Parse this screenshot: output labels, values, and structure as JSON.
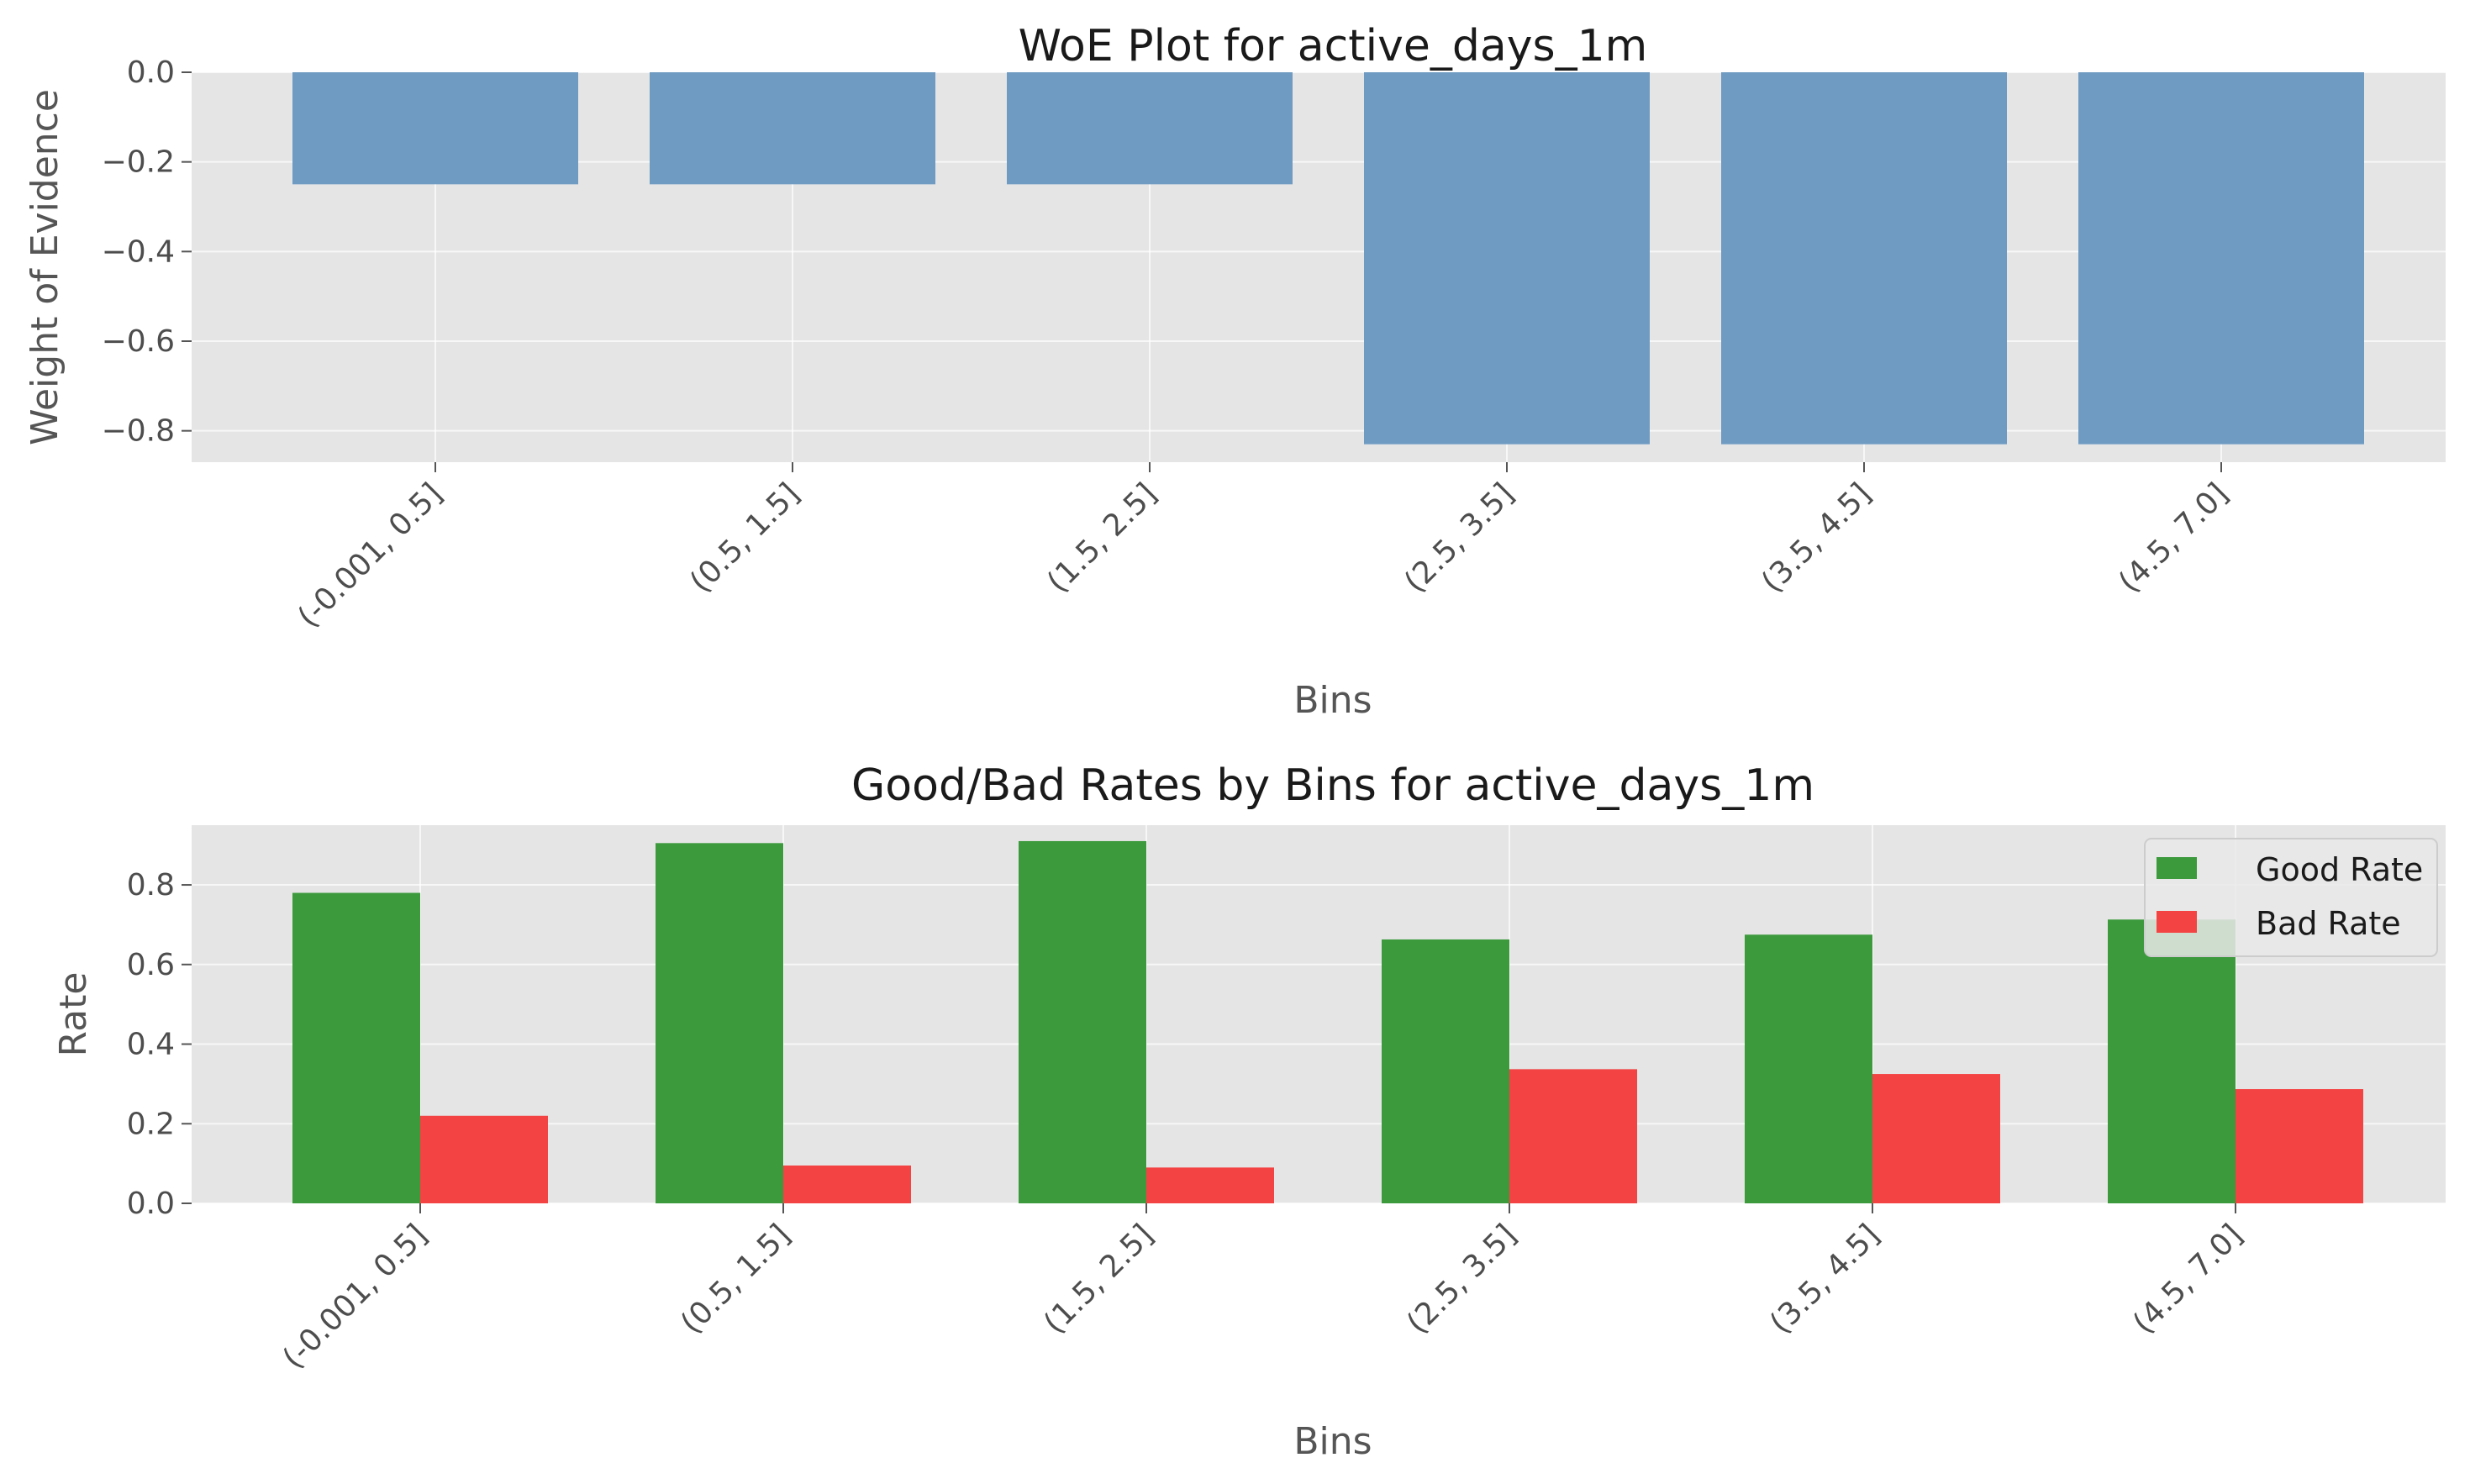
{
  "chart_data": [
    {
      "type": "bar",
      "title": "WoE Plot for active_days_1m",
      "xlabel": "Bins",
      "ylabel": "Weight of Evidence",
      "categories": [
        "(-0.001, 0.5]",
        "(0.5, 1.5]",
        "(1.5, 2.5]",
        "(2.5, 3.5]",
        "(3.5, 4.5]",
        "(4.5, 7.0]"
      ],
      "series": [
        {
          "values": [
            -0.25,
            -0.25,
            -0.25,
            -0.83,
            -0.83,
            -0.83
          ],
          "color": "#6f9bc3"
        }
      ],
      "ylim": [
        -0.87,
        0.0
      ],
      "yticks": [
        0.0,
        -0.2,
        -0.4,
        -0.6,
        -0.8
      ],
      "ytick_labels": [
        "0.0",
        "−0.2",
        "−0.4",
        "−0.6",
        "−0.8"
      ],
      "grid": true,
      "background": "#e5e5e5"
    },
    {
      "type": "bar",
      "title": "Good/Bad Rates by Bins for active_days_1m",
      "xlabel": "Bins",
      "ylabel": "Rate",
      "categories": [
        "(-0.001, 0.5]",
        "(0.5, 1.5]",
        "(1.5, 2.5]",
        "(2.5, 3.5]",
        "(3.5, 4.5]",
        "(4.5, 7.0]"
      ],
      "series": [
        {
          "name": "Good Rate",
          "values": [
            0.78,
            0.905,
            0.91,
            0.663,
            0.675,
            0.713
          ],
          "color": "#3c9a3c"
        },
        {
          "name": "Bad Rate",
          "values": [
            0.22,
            0.095,
            0.09,
            0.337,
            0.325,
            0.287
          ],
          "color": "#f44343"
        }
      ],
      "ylim": [
        0.0,
        0.95
      ],
      "yticks": [
        0.0,
        0.2,
        0.4,
        0.6,
        0.8
      ],
      "ytick_labels": [
        "0.0",
        "0.2",
        "0.4",
        "0.6",
        "0.8"
      ],
      "grid": true,
      "legend": "top-right",
      "background": "#e5e5e5"
    }
  ]
}
